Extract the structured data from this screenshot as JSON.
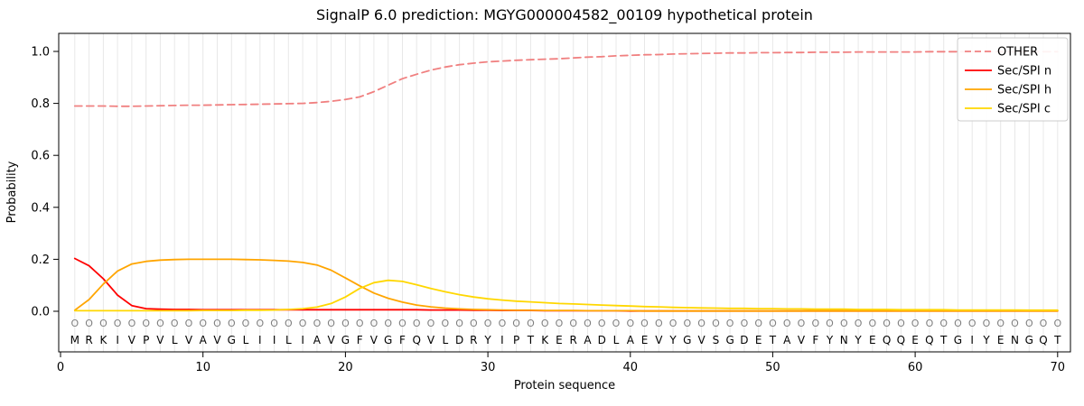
{
  "chart_data": {
    "type": "line",
    "title": "SignalP 6.0 prediction: MGYG000004582_00109 hypothetical protein",
    "xlabel": "Protein sequence",
    "ylabel": "Probability",
    "xlim": [
      -0.13,
      70.9
    ],
    "ylim": [
      -0.16,
      1.07
    ],
    "grid": "vertical-per-residue",
    "legend_position": "upper right",
    "xticks": [
      {
        "label": "0",
        "value": 0
      },
      {
        "label": "10",
        "value": 10
      },
      {
        "label": "20",
        "value": 20
      },
      {
        "label": "30",
        "value": 30
      },
      {
        "label": "40",
        "value": 40
      },
      {
        "label": "50",
        "value": 50
      },
      {
        "label": "60",
        "value": 60
      },
      {
        "label": "70",
        "value": 70
      }
    ],
    "yticks": [
      {
        "label": "0.0",
        "value": 0.0
      },
      {
        "label": "0.2",
        "value": 0.2
      },
      {
        "label": "0.4",
        "value": 0.4
      },
      {
        "label": "0.6",
        "value": 0.6
      },
      {
        "label": "0.8",
        "value": 0.8
      },
      {
        "label": "1.0",
        "value": 1.0
      }
    ],
    "sequence": "MRKIVPVLVAVGLIILIAVGFVGFQVLDRYIPTKERADLAEVYGVSGDETAVFYNYEQQEQTGIYENGQT",
    "region_labels": "OOOOOOOOOOOOOOOOOOOOOOOOOOOOOOOOOOOOOOOOOOOOOOOOOOOOOOOOOOOOOOOOOOOOOO",
    "series": [
      {
        "name": "OTHER",
        "color": "#f08080",
        "dashed": true,
        "values": [
          0.79,
          0.79,
          0.79,
          0.789,
          0.789,
          0.79,
          0.791,
          0.792,
          0.793,
          0.793,
          0.794,
          0.795,
          0.796,
          0.797,
          0.798,
          0.799,
          0.8,
          0.803,
          0.808,
          0.815,
          0.825,
          0.845,
          0.87,
          0.895,
          0.912,
          0.928,
          0.94,
          0.949,
          0.955,
          0.96,
          0.963,
          0.966,
          0.968,
          0.97,
          0.972,
          0.975,
          0.978,
          0.98,
          0.983,
          0.985,
          0.987,
          0.988,
          0.99,
          0.991,
          0.992,
          0.993,
          0.994,
          0.994,
          0.995,
          0.995,
          0.996,
          0.996,
          0.997,
          0.997,
          0.997,
          0.998,
          0.998,
          0.998,
          0.998,
          0.998,
          0.999,
          0.999,
          0.999,
          0.999,
          0.999,
          0.999,
          0.999,
          0.999,
          0.999,
          0.999
        ]
      },
      {
        "name": "Sec/SPI n",
        "color": "#ff0000",
        "dashed": false,
        "values": [
          0.203,
          0.175,
          0.125,
          0.062,
          0.022,
          0.01,
          0.008,
          0.007,
          0.007,
          0.006,
          0.006,
          0.006,
          0.006,
          0.006,
          0.006,
          0.006,
          0.006,
          0.006,
          0.006,
          0.006,
          0.006,
          0.006,
          0.006,
          0.006,
          0.006,
          0.005,
          0.005,
          0.005,
          0.004,
          0.004,
          0.003,
          0.003,
          0.003,
          0.002,
          0.002,
          0.002,
          0.002,
          0.002,
          0.002,
          0.001,
          0.001,
          0.001,
          0.001,
          0.001,
          0.001,
          0.001,
          0.001,
          0.001,
          0.001,
          0.001,
          0.001,
          0.001,
          0.001,
          0.001,
          0.001,
          0.001,
          0.001,
          0.001,
          0.001,
          0.001,
          0.001,
          0.001,
          0.001,
          0.001,
          0.001,
          0.001,
          0.001,
          0.001,
          0.001,
          0.001
        ]
      },
      {
        "name": "Sec/SPI h",
        "color": "#ffa500",
        "dashed": false,
        "values": [
          0.004,
          0.045,
          0.105,
          0.155,
          0.182,
          0.192,
          0.197,
          0.199,
          0.2,
          0.2,
          0.2,
          0.2,
          0.199,
          0.198,
          0.196,
          0.193,
          0.188,
          0.178,
          0.158,
          0.128,
          0.098,
          0.07,
          0.05,
          0.035,
          0.024,
          0.017,
          0.012,
          0.009,
          0.007,
          0.006,
          0.005,
          0.004,
          0.004,
          0.003,
          0.003,
          0.003,
          0.002,
          0.002,
          0.002,
          0.002,
          0.001,
          0.001,
          0.001,
          0.001,
          0.001,
          0.001,
          0.001,
          0.001,
          0.001,
          0.001,
          0.001,
          0.001,
          0.001,
          0.001,
          0.001,
          0.001,
          0.001,
          0.001,
          0.001,
          0.001,
          0.001,
          0.001,
          0.001,
          0.001,
          0.001,
          0.001,
          0.001,
          0.001,
          0.001,
          0.001
        ]
      },
      {
        "name": "Sec/SPI c",
        "color": "#ffd700",
        "dashed": false,
        "values": [
          0.002,
          0.002,
          0.002,
          0.002,
          0.002,
          0.002,
          0.002,
          0.002,
          0.002,
          0.003,
          0.003,
          0.003,
          0.004,
          0.004,
          0.005,
          0.007,
          0.01,
          0.016,
          0.03,
          0.055,
          0.088,
          0.11,
          0.119,
          0.115,
          0.102,
          0.088,
          0.075,
          0.064,
          0.055,
          0.048,
          0.043,
          0.039,
          0.036,
          0.033,
          0.03,
          0.028,
          0.026,
          0.024,
          0.022,
          0.02,
          0.018,
          0.017,
          0.015,
          0.014,
          0.013,
          0.012,
          0.011,
          0.011,
          0.01,
          0.01,
          0.009,
          0.009,
          0.008,
          0.008,
          0.008,
          0.007,
          0.007,
          0.007,
          0.006,
          0.006,
          0.006,
          0.006,
          0.005,
          0.005,
          0.005,
          0.005,
          0.005,
          0.004,
          0.004,
          0.004
        ]
      }
    ],
    "colors": {
      "grid": "#e8e8e8",
      "axis": "#000000",
      "tick_label": "#000000",
      "sequence_letter": "#000000",
      "region_label": "#7f7f7f",
      "legend_border": "#cccccc",
      "legend_background": "#ffffff"
    }
  }
}
